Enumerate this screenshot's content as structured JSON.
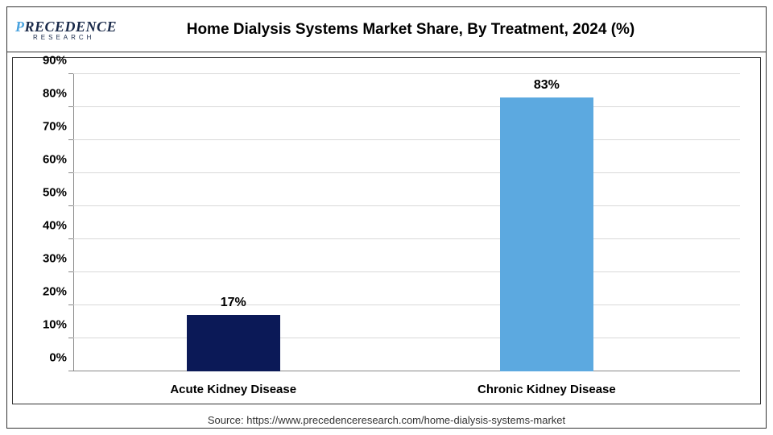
{
  "logo": {
    "first_letter": "P",
    "rest": "RECEDENCE",
    "sub": "RESEARCH"
  },
  "title": "Home Dialysis Systems Market Share, By Treatment, 2024 (%)",
  "chart": {
    "type": "bar",
    "categories": [
      "Acute Kidney Disease",
      "Chronic Kidney Disease"
    ],
    "values": [
      17,
      83
    ],
    "value_labels": [
      "17%",
      "83%"
    ],
    "bar_colors": [
      "#0b1957",
      "#5ca9e0"
    ],
    "ylim": [
      0,
      90
    ],
    "ytick_step": 10,
    "ytick_labels": [
      "0%",
      "10%",
      "20%",
      "30%",
      "40%",
      "50%",
      "60%",
      "70%",
      "80%",
      "90%"
    ],
    "label_fontsize": 15,
    "value_label_fontsize": 16,
    "bar_width_pct": 14,
    "bar_positions_pct": [
      24,
      71
    ],
    "background_color": "#ffffff",
    "grid_color": "#d9d9d9",
    "axis_color": "#888888"
  },
  "source": "Source: https://www.precedenceresearch.com/home-dialysis-systems-market"
}
